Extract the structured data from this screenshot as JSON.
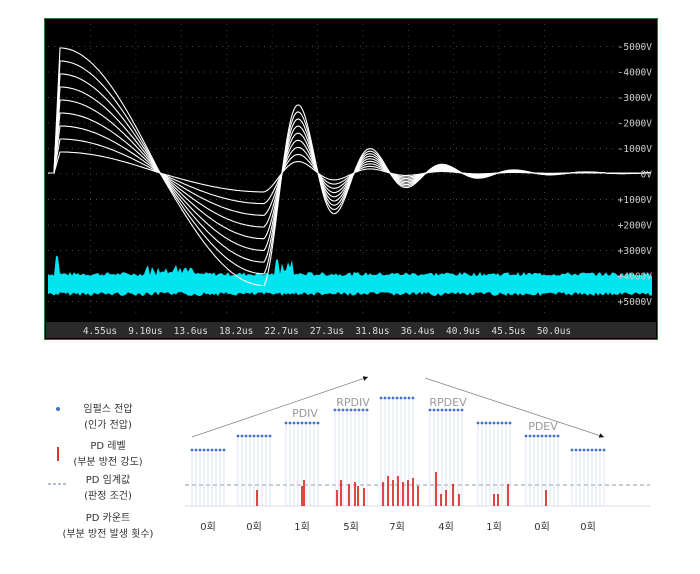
{
  "scope": {
    "right_labels": [
      "-5000V",
      "-4000V",
      "-3000V",
      "-2000V",
      "-1000V",
      "0V",
      "+1000V",
      "+2000V",
      "+3000V",
      "+4000V",
      "+5000V"
    ],
    "time_labels": [
      "4.55us",
      "9.10us",
      "13.6us",
      "18.2us",
      "22.7us",
      "27.3us",
      "31.8us",
      "36.4us",
      "40.9us",
      "45.5us",
      "50.0us"
    ],
    "waveform_color": "#ffffff",
    "noise_color": "#00e5f0",
    "background": "#000000"
  },
  "diagram": {
    "legend": {
      "impulse_title": "임펄스 전압",
      "impulse_sub": "(인가 전압)",
      "pd_level_title": "PD 레벨",
      "pd_level_sub": "(부분 방전 강도)",
      "pd_threshold_title": "PD 임계값",
      "pd_threshold_sub": "(판정 조건)",
      "pd_count_title": "PD 카운트",
      "pd_count_sub": "(부분 방전 발생 횟수)"
    },
    "labels": {
      "pdiv": "PDIV",
      "rpdiv": "RPDIV",
      "rpdev": "RPDEV",
      "pdev": "PDEV"
    },
    "counts": [
      "0회",
      "0회",
      "1회",
      "5회",
      "7회",
      "4회",
      "1회",
      "0회",
      "0회"
    ],
    "impulse_color": "#4472c4",
    "pd_color": "#e03030",
    "threshold_color": "#6a7f99"
  }
}
